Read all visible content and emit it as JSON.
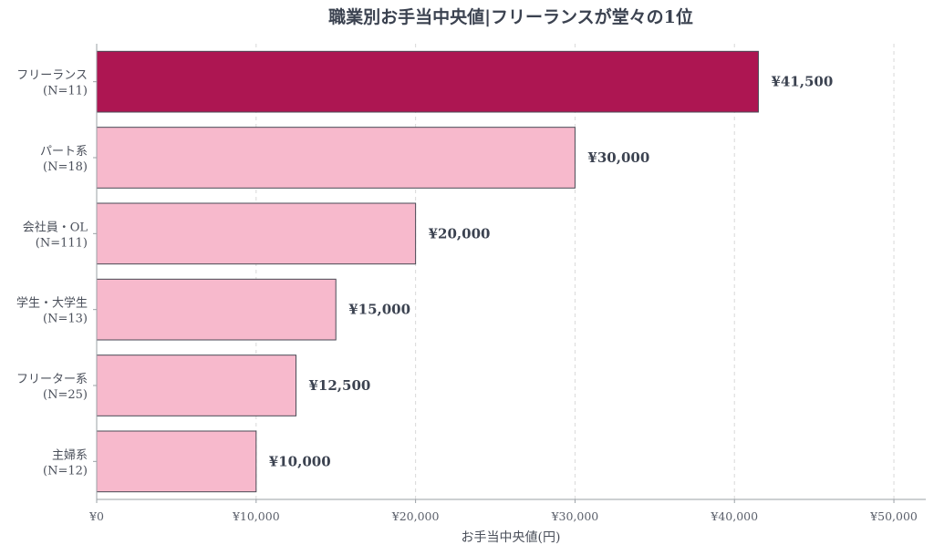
{
  "chart_data": {
    "type": "bar",
    "orientation": "horizontal",
    "title": "職業別お手当中央値|フリーランスが堂々の1位",
    "xlabel": "お手当中央値(円)",
    "ylabel": "",
    "xlim": [
      0,
      52000
    ],
    "xticks": [
      0,
      10000,
      20000,
      30000,
      40000,
      50000
    ],
    "xtick_labels": [
      "¥0",
      "¥10,000",
      "¥20,000",
      "¥30,000",
      "¥40,000",
      "¥50,000"
    ],
    "grid": "vertical dashed",
    "categories": [
      {
        "name": "フリーランス",
        "n": "(N=11)"
      },
      {
        "name": "パート系",
        "n": "(N=18)"
      },
      {
        "name": "会社員・OL",
        "n": "(N=111)"
      },
      {
        "name": "学生・大学生",
        "n": "(N=13)"
      },
      {
        "name": "フリーター系",
        "n": "(N=25)"
      },
      {
        "name": "主婦系",
        "n": "(N=12)"
      }
    ],
    "values": [
      41500,
      30000,
      20000,
      15000,
      12500,
      10000
    ],
    "value_labels": [
      "¥41,500",
      "¥30,000",
      "¥20,000",
      "¥15,000",
      "¥12,500",
      "¥10,000"
    ],
    "highlight_index": 0,
    "colors": {
      "highlight": "#ad1652",
      "bar": "#f7b9cc",
      "bar_edge": "#4a4a55",
      "grid": "#d9d9d9",
      "axis": "#9aa0a6"
    }
  }
}
